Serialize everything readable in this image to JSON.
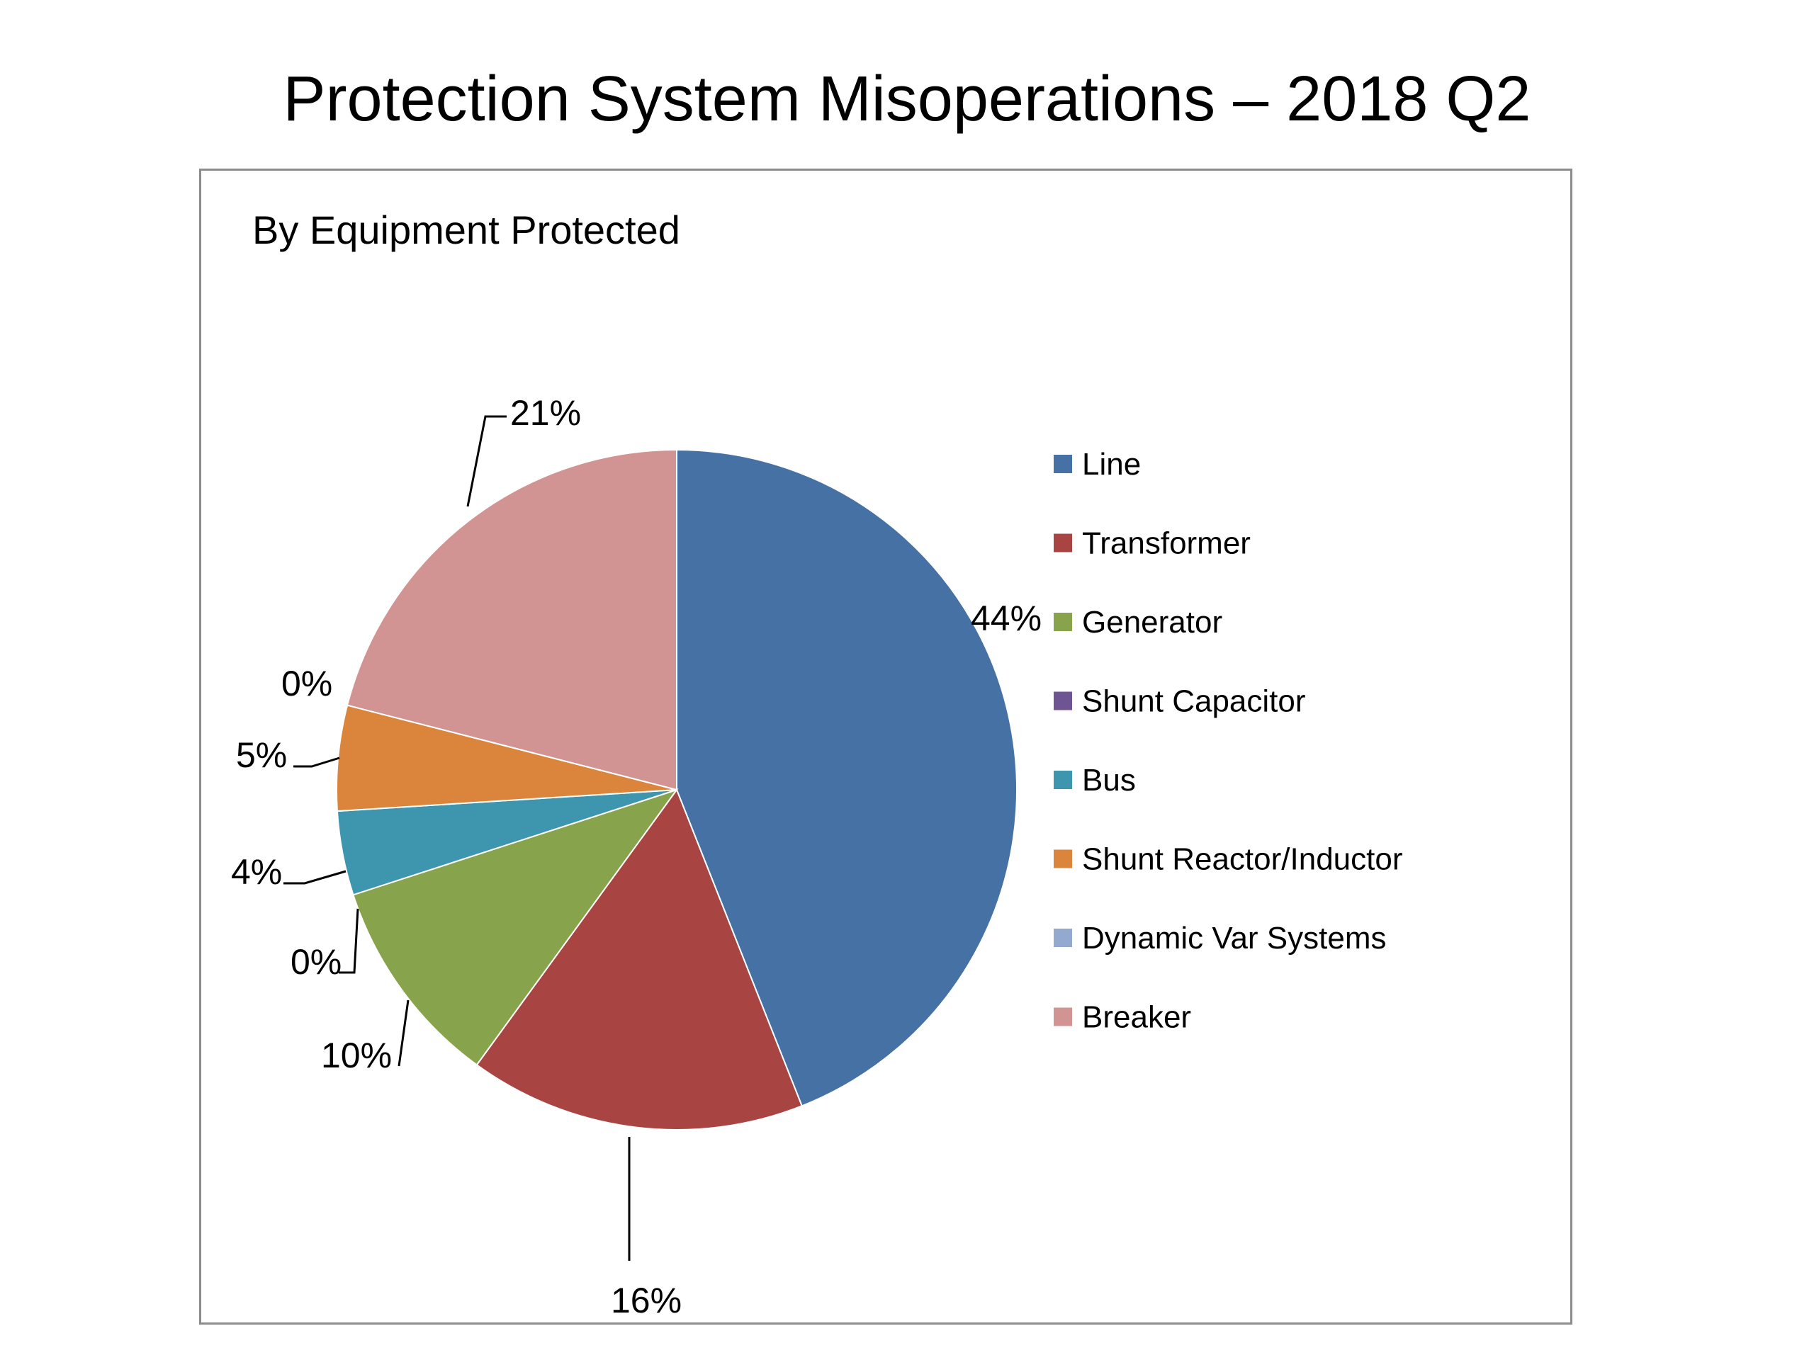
{
  "title": "Protection System Misoperations – 2018 Q2",
  "chart_data": {
    "type": "pie",
    "title": "By Equipment Protected",
    "legend_position": "right",
    "slices": [
      {
        "name": "Line",
        "value": 44,
        "label": "44%",
        "color": "#4671a5"
      },
      {
        "name": "Transformer",
        "value": 16,
        "label": "16%",
        "color": "#a84442"
      },
      {
        "name": "Generator",
        "value": 10,
        "label": "10%",
        "color": "#87a34b"
      },
      {
        "name": "Shunt Capacitor",
        "value": 0,
        "label": "0%",
        "color": "#6e5591"
      },
      {
        "name": "Bus",
        "value": 4,
        "label": "4%",
        "color": "#3e96ae"
      },
      {
        "name": "Shunt Reactor/Inductor",
        "value": 5,
        "label": "5%",
        "color": "#da843c"
      },
      {
        "name": "Dynamic Var Systems",
        "value": 0,
        "label": "0%",
        "color": "#93a9cf"
      },
      {
        "name": "Breaker",
        "value": 21,
        "label": "21%",
        "color": "#d29393"
      }
    ]
  }
}
